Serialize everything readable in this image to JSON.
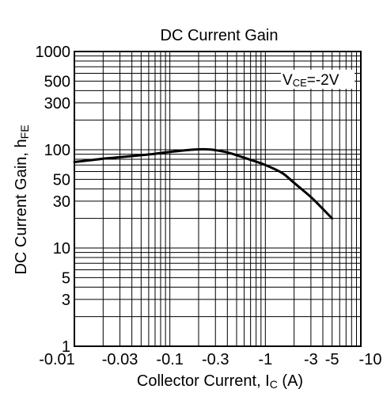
{
  "chart_data": {
    "type": "line",
    "title": "DC Current Gain",
    "xlabel": {
      "main": "Collector Current, I",
      "sub": "C",
      "unit": " (A)"
    },
    "ylabel": {
      "main": "DC Current Gain, h",
      "sub": "FE"
    },
    "xscale": "log",
    "yscale": "log",
    "xlim": [
      -0.01,
      -10
    ],
    "ylim": [
      1,
      1000
    ],
    "x_ticks": [
      -0.01,
      -0.03,
      -0.1,
      -0.3,
      -1,
      -3,
      -5,
      -10
    ],
    "x_tick_labels": [
      "-0.01",
      "-0.03",
      "-0.1",
      "-0.3",
      "-1",
      "-3",
      "-5",
      "-10"
    ],
    "y_ticks": [
      1,
      3,
      5,
      10,
      30,
      50,
      100,
      300,
      500,
      1000
    ],
    "y_tick_labels": [
      "1",
      "3",
      "5",
      "10",
      "30",
      "50",
      "100",
      "300",
      "500",
      "1000"
    ],
    "grid": true,
    "annotation": {
      "main": "V",
      "sub": "CE",
      "value": "=-2V",
      "placement": "top-right"
    },
    "series": [
      {
        "x": [
          -0.01,
          -0.02,
          -0.03,
          -0.05,
          -0.07,
          -0.1,
          -0.15,
          -0.2,
          -0.25,
          -0.3,
          -0.4,
          -0.5,
          -0.7,
          -1,
          -1.5,
          -2,
          -3,
          -4,
          -5
        ],
        "y": [
          75,
          81,
          84,
          88,
          91,
          95,
          99,
          101,
          101,
          99,
          94,
          88,
          79,
          70,
          58,
          46,
          33,
          25,
          20
        ]
      }
    ]
  }
}
